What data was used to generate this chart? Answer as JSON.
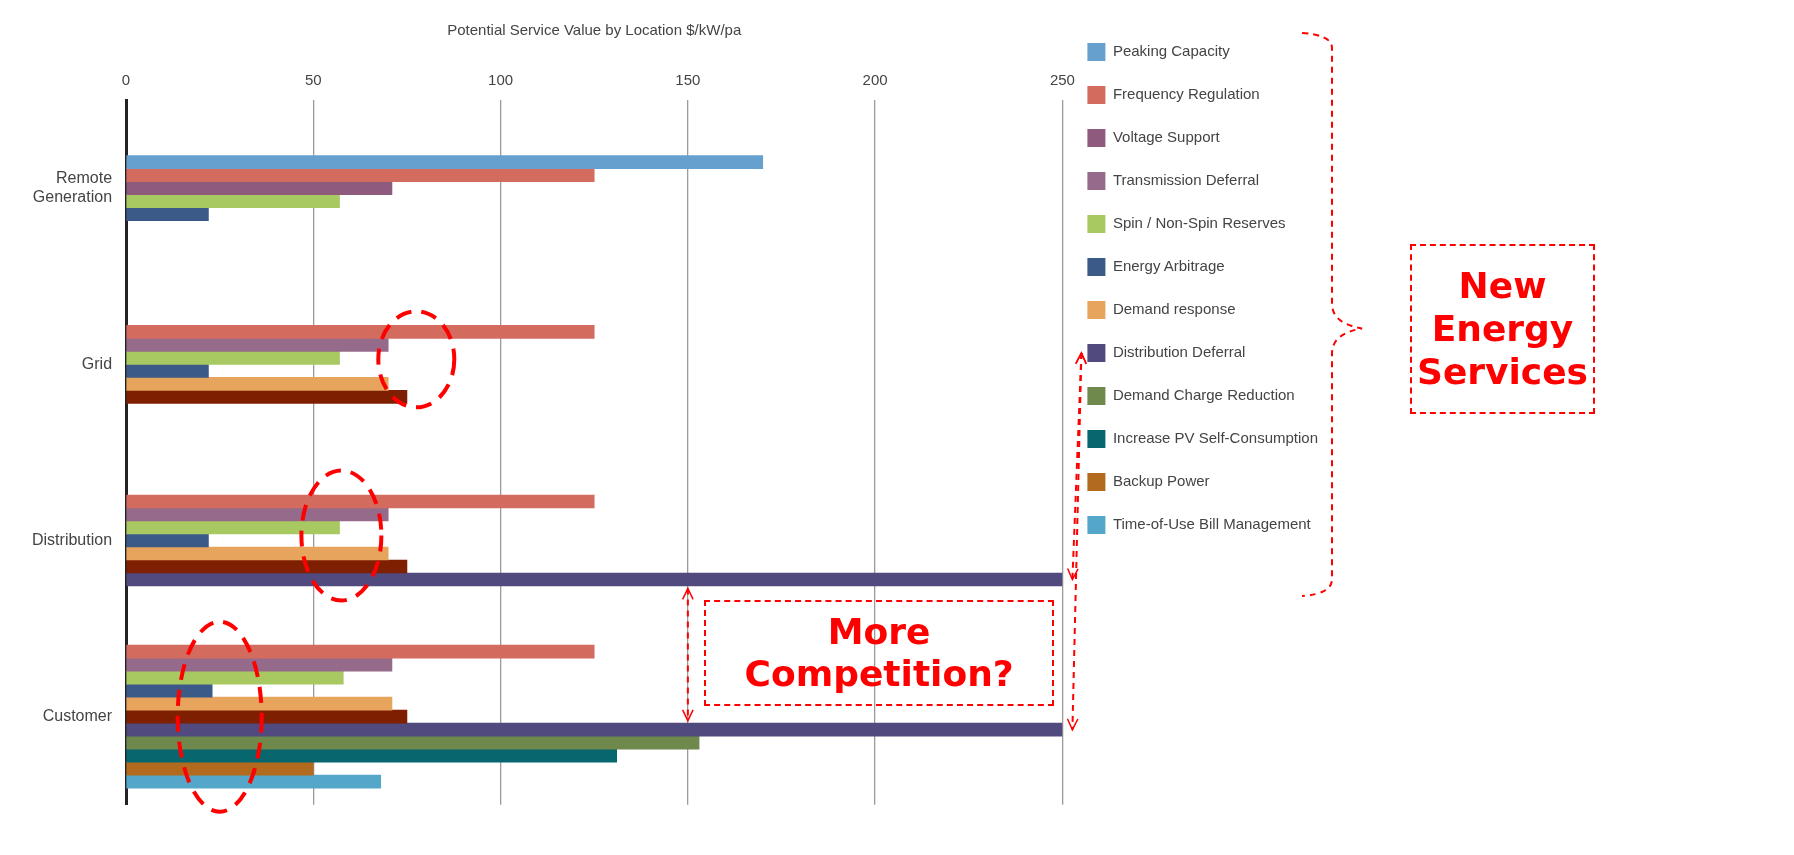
{
  "chart_data": {
    "type": "bar",
    "orientation": "horizontal",
    "xlabel": "Potential Service Value by Location $/kW/pa",
    "categories": [
      "Remote Generation",
      "Grid",
      "Distribution",
      "Customer"
    ],
    "series": [
      {
        "name": "Peaking Capacity",
        "color": "#65a0cf",
        "values": [
          170,
          null,
          null,
          null
        ]
      },
      {
        "name": "Frequency Regulation",
        "color": "#d36b5f",
        "values": [
          125,
          125,
          125,
          125
        ]
      },
      {
        "name": "Voltage Support",
        "color": "#8e5a7e",
        "values": [
          71,
          null,
          null,
          null
        ]
      },
      {
        "name": "Transmission Deferral",
        "color": "#966a8a",
        "values": [
          null,
          70,
          70,
          71
        ]
      },
      {
        "name": "Spin / Non-Spin Reserves",
        "color": "#a8c862",
        "values": [
          57,
          57,
          57,
          58
        ]
      },
      {
        "name": "Energy Arbitrage",
        "color": "#3b5a88",
        "values": [
          22,
          22,
          22,
          23
        ]
      },
      {
        "name": "Demand response",
        "color": "#e7a45c",
        "values": [
          null,
          70,
          70,
          71
        ]
      },
      {
        "color": "#7e1f02",
        "values": [
          null,
          75,
          75,
          75
        ]
      },
      {
        "name": "Distribution Deferral",
        "color": "#504a7e",
        "values": [
          null,
          null,
          250,
          250
        ]
      },
      {
        "name": "Demand Charge Reduction",
        "color": "#6f884b",
        "values": [
          null,
          null,
          null,
          153
        ]
      },
      {
        "name": "Increase PV Self-Consumption",
        "color": "#08666f",
        "values": [
          null,
          null,
          null,
          131
        ]
      },
      {
        "name": "Backup Power",
        "color": "#b26a1e",
        "values": [
          null,
          null,
          null,
          50
        ]
      },
      {
        "name": "Time-of-Use Bill Management",
        "color": "#54a7c8",
        "values": [
          null,
          null,
          null,
          68
        ]
      }
    ],
    "xlim": [
      0,
      250
    ],
    "xticks": [
      0,
      50,
      100,
      150,
      200,
      250
    ],
    "grid": "x",
    "legend": "right",
    "annotations": [
      "More Competition?",
      "New Energy Services"
    ]
  }
}
